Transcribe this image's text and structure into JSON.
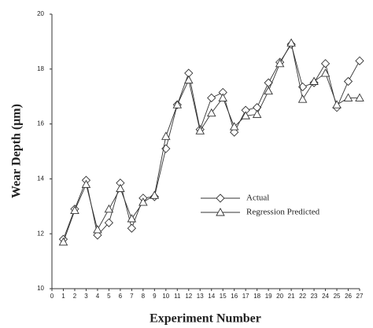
{
  "chart_data": {
    "type": "line",
    "xlabel": "Experiment Number",
    "ylabel": "Wear Depth (μm)",
    "x": [
      1,
      2,
      3,
      4,
      5,
      6,
      7,
      8,
      9,
      10,
      11,
      12,
      13,
      14,
      15,
      16,
      17,
      18,
      19,
      20,
      21,
      22,
      23,
      24,
      25,
      26,
      27
    ],
    "xlim": [
      0,
      27
    ],
    "xticks": [
      0,
      1,
      2,
      3,
      4,
      5,
      6,
      7,
      8,
      9,
      10,
      11,
      12,
      13,
      14,
      15,
      16,
      17,
      18,
      19,
      20,
      21,
      22,
      23,
      24,
      25,
      26,
      27
    ],
    "ylim": [
      10,
      20
    ],
    "yticks": [
      10,
      12,
      14,
      16,
      18,
      20
    ],
    "legend_position": "center-right",
    "series": [
      {
        "name": "Actual",
        "color": "#333333",
        "marker": "diamond",
        "values": [
          11.8,
          12.9,
          13.95,
          11.95,
          12.4,
          13.85,
          12.2,
          13.3,
          13.35,
          15.1,
          16.7,
          17.85,
          15.8,
          16.95,
          17.15,
          15.7,
          16.5,
          16.6,
          17.5,
          18.25,
          18.9,
          17.35,
          17.5,
          18.2,
          16.6,
          17.55,
          18.3
        ]
      },
      {
        "name": "Regression Predicted",
        "color": "#333333",
        "marker": "triangle",
        "values": [
          11.7,
          12.85,
          13.8,
          12.15,
          12.9,
          13.65,
          12.55,
          13.15,
          13.4,
          15.55,
          16.7,
          17.6,
          15.75,
          16.4,
          16.95,
          15.9,
          16.3,
          16.35,
          17.2,
          18.2,
          18.95,
          16.9,
          17.55,
          17.85,
          16.7,
          16.95,
          16.95
        ]
      }
    ]
  }
}
